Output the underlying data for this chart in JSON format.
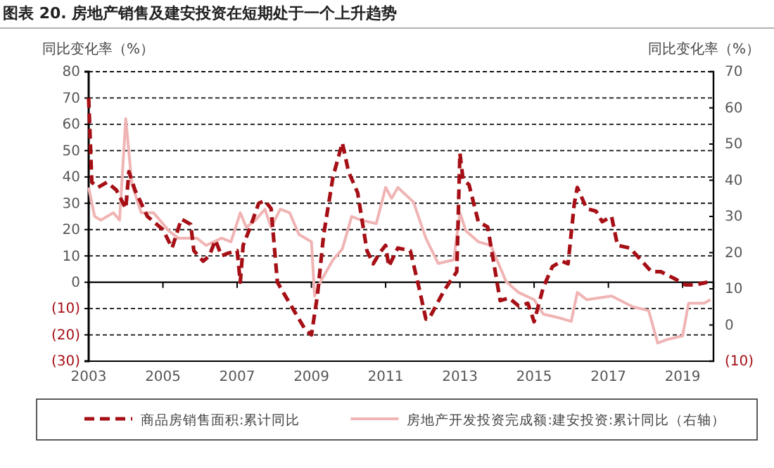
{
  "chart_data": {
    "type": "line",
    "title": "图表 20. 房地产销售及建安投资在短期处于一个上升趋势",
    "ylabel": "同比变化率（%）",
    "y2label": "同比变化率（%）",
    "xlim": [
      "2003-01",
      "2019-11"
    ],
    "xticks": [
      {
        "value": "2003-01",
        "label": "2003"
      },
      {
        "value": "2005-01",
        "label": "2005"
      },
      {
        "value": "2007-01",
        "label": "2007"
      },
      {
        "value": "2009-01",
        "label": "2009"
      },
      {
        "value": "2011-01",
        "label": "2011"
      },
      {
        "value": "2013-01",
        "label": "2013"
      },
      {
        "value": "2015-01",
        "label": "2015"
      },
      {
        "value": "2017-01",
        "label": "2017"
      },
      {
        "value": "2019-01",
        "label": "2019"
      }
    ],
    "ylim": [
      -30,
      80
    ],
    "yticks": [
      {
        "value": -30,
        "label": "(30)"
      },
      {
        "value": -20,
        "label": "(20)"
      },
      {
        "value": -10,
        "label": "(10)"
      },
      0,
      10,
      20,
      30,
      40,
      50,
      60,
      70,
      80
    ],
    "y2lim": [
      -10,
      70
    ],
    "y2ticks": [
      {
        "value": -10,
        "label": "(10)"
      },
      0,
      10,
      20,
      30,
      40,
      50,
      60,
      70
    ],
    "grid": "y",
    "legend": "bottom",
    "series": [
      {
        "name": "商品房销售面积:累计同比",
        "color": "#a50f15",
        "line_style": "dashed",
        "x": [
          "2003-01",
          "2003-02",
          "2003-04",
          "2003-07",
          "2003-10",
          "2004-01",
          "2004-02",
          "2004-04",
          "2004-08",
          "2005-01",
          "2005-04",
          "2005-07",
          "2005-10",
          "2005-11",
          "2006-02",
          "2006-04",
          "2006-06",
          "2006-08",
          "2006-10",
          "2007-01",
          "2007-02",
          "2007-03",
          "2007-05",
          "2007-08",
          "2007-10",
          "2007-12",
          "2008-02",
          "2008-04",
          "2008-08",
          "2008-11",
          "2009-01",
          "2009-03",
          "2009-05",
          "2009-08",
          "2009-11",
          "2010-01",
          "2010-04",
          "2010-07",
          "2010-09",
          "2010-11",
          "2011-01",
          "2011-02",
          "2011-05",
          "2011-09",
          "2011-12",
          "2012-02",
          "2012-03",
          "2012-08",
          "2012-12",
          "2013-01",
          "2013-02",
          "2013-04",
          "2013-07",
          "2013-10",
          "2014-02",
          "2014-05",
          "2014-08",
          "2014-11",
          "2015-01",
          "2015-04",
          "2015-07",
          "2015-10",
          "2015-12",
          "2016-02",
          "2016-03",
          "2016-06",
          "2016-09",
          "2016-11",
          "2017-02",
          "2017-04",
          "2017-08",
          "2018-03",
          "2018-06",
          "2018-11",
          "2019-02",
          "2019-05",
          "2019-09"
        ],
        "values": [
          70,
          38,
          36,
          38,
          35,
          28,
          42,
          35,
          25,
          20,
          13,
          24,
          22,
          12,
          8,
          10,
          16,
          10,
          11,
          12,
          0,
          14,
          20,
          30,
          31,
          28,
          0,
          -4,
          -12,
          -18,
          -20,
          -5,
          18,
          40,
          53,
          42,
          34,
          12,
          7,
          11,
          14,
          6,
          13,
          12,
          -3,
          -14,
          -14,
          -3,
          4,
          49,
          39,
          37,
          23,
          21,
          -7,
          -6,
          -9,
          -8,
          -15,
          -2,
          6,
          8,
          7,
          30,
          36,
          28,
          27,
          23,
          25,
          14,
          13,
          4,
          4,
          1,
          -1,
          -1,
          0
        ]
      },
      {
        "name": "房地产开发投资完成额:建安投资:累计同比（右轴）",
        "color": "#f0b4b4",
        "line_style": "solid",
        "axis": "y2",
        "x": [
          "2003-01",
          "2003-03",
          "2003-05",
          "2003-09",
          "2003-11",
          "2004-01",
          "2004-03",
          "2004-06",
          "2004-10",
          "2005-03",
          "2005-06",
          "2005-12",
          "2006-03",
          "2006-08",
          "2006-11",
          "2007-02",
          "2007-04",
          "2007-07",
          "2007-10",
          "2007-12",
          "2008-03",
          "2008-06",
          "2008-09",
          "2009-01",
          "2009-02",
          "2009-04",
          "2009-08",
          "2009-11",
          "2010-02",
          "2010-05",
          "2010-10",
          "2011-01",
          "2011-03",
          "2011-05",
          "2011-10",
          "2012-02",
          "2012-06",
          "2012-11",
          "2013-01",
          "2013-03",
          "2013-07",
          "2013-11",
          "2014-04",
          "2014-08",
          "2015-01",
          "2015-04",
          "2015-09",
          "2016-01",
          "2016-03",
          "2016-06",
          "2017-02",
          "2017-09",
          "2018-02",
          "2018-05",
          "2018-08",
          "2019-01",
          "2019-03",
          "2019-08",
          "2019-10"
        ],
        "values": [
          38,
          30,
          29,
          31,
          29,
          57,
          39,
          31,
          31,
          26,
          24,
          24,
          22,
          24,
          23,
          31,
          27,
          29,
          32,
          27,
          32,
          31,
          25,
          23,
          8,
          12,
          18,
          21,
          30,
          29,
          28,
          38,
          35,
          38,
          34,
          24,
          17,
          18,
          31,
          26,
          23,
          22,
          12,
          9,
          7,
          3,
          2,
          1,
          9,
          7,
          8,
          5,
          4,
          -5,
          -4,
          -3,
          6,
          6,
          7
        ]
      }
    ]
  }
}
